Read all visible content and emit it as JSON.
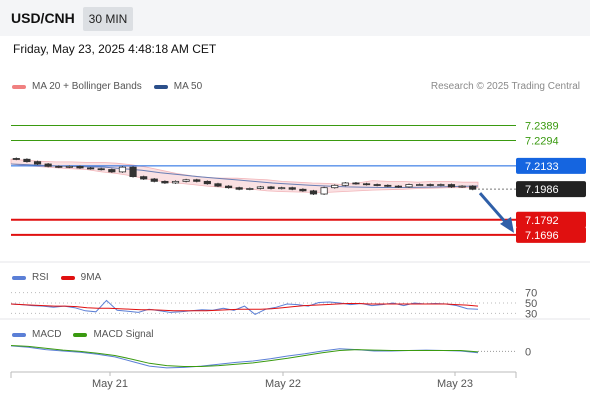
{
  "header": {
    "symbol": "USD/CNH",
    "timeframe": "30 MIN",
    "datetime": "Friday, May 23, 2025 4:48:18 AM CET"
  },
  "price_panel": {
    "legend": [
      {
        "label": "MA 20 + Bollinger Bands",
        "color": "#f08080"
      },
      {
        "label": "MA 50",
        "color": "#2b4f8a"
      }
    ],
    "copyright": "Research © 2025 Trading Central"
  },
  "rsi_panel": {
    "legend": [
      {
        "label": "RSI",
        "color": "#5b7fd6"
      },
      {
        "label": "9MA",
        "color": "#e01010"
      }
    ]
  },
  "macd_panel": {
    "legend": [
      {
        "label": "MACD",
        "color": "#5b7fd6"
      },
      {
        "label": "MACD Signal",
        "color": "#3a9a10"
      }
    ]
  },
  "chart_data": [
    {
      "type": "line",
      "subtype": "candlestick",
      "title": "USD/CNH",
      "ylim": [
        7.155,
        7.255
      ],
      "x_labels": [
        "May 21",
        "May 22",
        "May 23"
      ],
      "levels": [
        {
          "value": 7.2389,
          "label": "7.2389",
          "kind": "resistance",
          "color": "#3a9a10",
          "style": "text"
        },
        {
          "value": 7.2294,
          "label": "7.2294",
          "kind": "resistance",
          "color": "#3a9a10",
          "style": "text"
        },
        {
          "value": 7.2133,
          "label": "7.2133",
          "kind": "pivot",
          "color": "#1565e0",
          "style": "box"
        },
        {
          "value": 7.1986,
          "label": "7.1986",
          "kind": "last_price",
          "color": "#222222",
          "style": "box"
        },
        {
          "value": 7.1792,
          "label": "7.1792",
          "kind": "support",
          "color": "#e01010",
          "style": "box"
        },
        {
          "value": 7.1696,
          "label": "7.1696",
          "kind": "support",
          "color": "#e01010",
          "style": "box"
        }
      ],
      "price_series": [
        7.2175,
        7.216,
        7.2145,
        7.213,
        7.2125,
        7.213,
        7.212,
        7.2115,
        7.211,
        7.2095,
        7.2125,
        7.2065,
        7.205,
        7.2035,
        7.2025,
        7.2035,
        7.2045,
        7.2035,
        7.202,
        7.2005,
        7.1995,
        7.1985,
        7.199,
        7.2,
        7.199,
        7.1995,
        7.1985,
        7.1975,
        7.1955,
        7.1995,
        7.201,
        7.2025,
        7.202,
        7.2015,
        7.201,
        7.2005,
        7.2,
        7.2015,
        7.2015,
        7.201,
        7.2015,
        7.2,
        7.2005,
        7.1985
      ],
      "ma50_series": [
        7.2145,
        7.214,
        7.2135,
        7.213,
        7.2128,
        7.2125,
        7.2115,
        7.2105,
        7.209,
        7.2078,
        7.2065,
        7.2055,
        7.2045,
        7.2035,
        7.2025,
        7.2018,
        7.201,
        7.2005,
        7.2,
        7.1998,
        7.1996,
        7.1996,
        7.1998,
        7.2,
        7.2003,
        7.2006
      ],
      "bollinger_upper": [
        7.2175,
        7.2168,
        7.2162,
        7.2158,
        7.2158,
        7.2155,
        7.2155,
        7.215,
        7.214,
        7.2125,
        7.2105,
        7.2085,
        7.207,
        7.206,
        7.2055,
        7.2055,
        7.205,
        7.2045,
        7.2035,
        7.203,
        7.2025,
        7.2022,
        7.2015,
        7.2025,
        7.204,
        7.2035,
        7.2035,
        7.203,
        7.2035,
        7.2035,
        7.203,
        7.203
      ],
      "bollinger_lower": [
        7.2145,
        7.2135,
        7.2128,
        7.212,
        7.2115,
        7.211,
        7.2095,
        7.2085,
        7.207,
        7.205,
        7.2035,
        7.2025,
        7.2015,
        7.2005,
        7.1998,
        7.1992,
        7.1985,
        7.1975,
        7.197,
        7.1968,
        7.1965,
        7.1965,
        7.197,
        7.1975,
        7.198,
        7.1982,
        7.1985,
        7.199,
        7.1992,
        7.1995,
        7.1995,
        7.1995
      ],
      "forecast_arrow": {
        "from": 7.1986,
        "to": 7.1696
      }
    },
    {
      "type": "line",
      "title": "RSI",
      "ylim": [
        25,
        75
      ],
      "levels": [
        {
          "value": 70,
          "label": "70"
        },
        {
          "value": 50,
          "label": "50"
        },
        {
          "value": 30,
          "label": "30"
        }
      ],
      "series": [
        {
          "name": "RSI",
          "values": [
            48,
            47,
            45,
            44,
            42,
            44,
            41,
            35,
            33,
            55,
            36,
            34,
            32,
            38,
            35,
            32,
            33,
            35,
            37,
            36,
            40,
            36,
            44,
            28,
            38,
            42,
            48,
            47,
            44,
            51,
            52,
            50,
            47,
            49,
            45,
            47,
            50,
            45,
            50,
            48,
            49,
            48,
            45,
            39,
            38
          ]
        },
        {
          "name": "9MA",
          "values": [
            48,
            47,
            46,
            45,
            44,
            44,
            43,
            41,
            40,
            40,
            39,
            38,
            37,
            37,
            36,
            35,
            35,
            35,
            35,
            36,
            37,
            38,
            38,
            38,
            39,
            41,
            43,
            45,
            46,
            47,
            48,
            49,
            49,
            48,
            48,
            48,
            48,
            48,
            48,
            48,
            48,
            47,
            46,
            44
          ]
        }
      ]
    },
    {
      "type": "line",
      "title": "MACD",
      "ylim": [
        -0.0045,
        0.0025
      ],
      "levels": [
        {
          "value": 0,
          "label": "0"
        }
      ],
      "series": [
        {
          "name": "MACD",
          "values": [
            0.0012,
            0.0009,
            0.0004,
            0.0001,
            -0.0002,
            -0.0006,
            -0.0012,
            -0.0022,
            -0.0032,
            -0.0036,
            -0.0035,
            -0.0032,
            -0.0028,
            -0.0024,
            -0.0021,
            -0.0016,
            -0.001,
            -0.0005,
            0.0001,
            0.0006,
            0.0004,
            0.0001,
            0.0001,
            0.0002,
            0.0003,
            0.0002,
            0.0001,
            -0.0003
          ]
        },
        {
          "name": "MACD Signal",
          "values": [
            0.0013,
            0.0011,
            0.0007,
            0.0003,
            0.0,
            -0.0004,
            -0.0009,
            -0.0017,
            -0.0026,
            -0.0031,
            -0.0033,
            -0.0033,
            -0.0031,
            -0.0028,
            -0.0025,
            -0.002,
            -0.0015,
            -0.0009,
            -0.0003,
            0.0002,
            0.0004,
            0.0003,
            0.0002,
            0.0002,
            0.0002,
            0.0002,
            0.0002,
            -0.0001
          ]
        }
      ]
    }
  ]
}
